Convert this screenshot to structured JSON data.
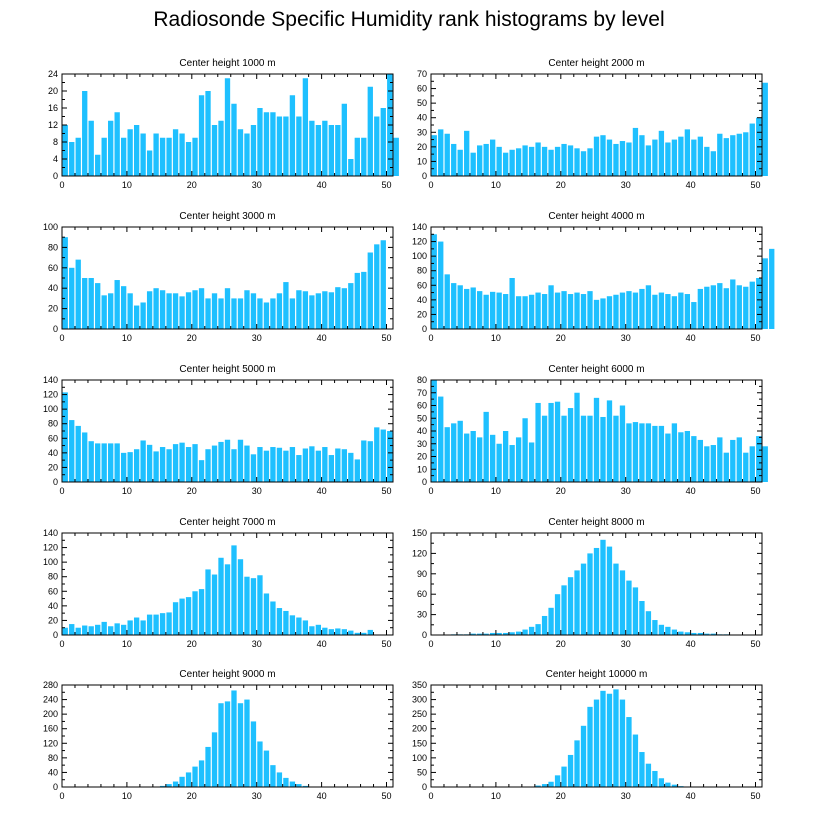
{
  "title": "Radiosonde Specific Humidity rank histograms by level",
  "colors": {
    "bar": "#1ec0ff",
    "axis": "#000000",
    "background": "#ffffff"
  },
  "chart_data": [
    {
      "type": "bar",
      "title": "Center height 1000 m",
      "xlim": [
        0,
        51
      ],
      "ylim": [
        0,
        24
      ],
      "xticks": [
        0,
        10,
        20,
        30,
        40,
        50
      ],
      "yticks": [
        0,
        4,
        8,
        12,
        16,
        20,
        24
      ],
      "values": [
        12,
        8,
        9,
        20,
        13,
        5,
        9,
        13,
        15,
        9,
        11,
        12,
        10,
        6,
        10,
        9,
        9,
        11,
        10,
        8,
        9,
        19,
        20,
        12,
        13,
        23,
        17,
        11,
        10,
        12,
        16,
        15,
        15,
        14,
        14,
        19,
        14,
        23,
        13,
        12,
        13,
        12,
        12,
        17,
        4,
        9,
        9,
        21,
        14,
        16,
        24,
        9
      ]
    },
    {
      "type": "bar",
      "title": "Center height 2000 m",
      "xlim": [
        0,
        51
      ],
      "ylim": [
        0,
        70
      ],
      "xticks": [
        0,
        10,
        20,
        30,
        40,
        50
      ],
      "yticks": [
        0,
        10,
        20,
        30,
        40,
        50,
        60,
        70
      ],
      "values": [
        28,
        32,
        29,
        22,
        18,
        31,
        16,
        21,
        22,
        25,
        20,
        16,
        18,
        19,
        21,
        20,
        23,
        20,
        18,
        20,
        22,
        21,
        19,
        17,
        19,
        27,
        28,
        25,
        22,
        24,
        23,
        33,
        28,
        21,
        25,
        31,
        23,
        25,
        27,
        32,
        25,
        27,
        20,
        17,
        29,
        26,
        28,
        29,
        30,
        36,
        40,
        64
      ]
    },
    {
      "type": "bar",
      "title": "Center height 3000 m",
      "xlim": [
        0,
        51
      ],
      "ylim": [
        0,
        100
      ],
      "xticks": [
        0,
        10,
        20,
        30,
        40,
        50
      ],
      "yticks": [
        0,
        20,
        40,
        60,
        80,
        100
      ],
      "values": [
        90,
        60,
        68,
        50,
        50,
        45,
        33,
        35,
        48,
        42,
        35,
        23,
        26,
        37,
        40,
        38,
        35,
        35,
        32,
        36,
        38,
        40,
        30,
        35,
        30,
        40,
        30,
        30,
        38,
        35,
        30,
        26,
        30,
        35,
        46,
        30,
        38,
        37,
        33,
        35,
        37,
        36,
        41,
        40,
        45,
        55,
        56,
        75,
        83,
        87
      ]
    },
    {
      "type": "bar",
      "title": "Center height 4000 m",
      "xlim": [
        0,
        51
      ],
      "ylim": [
        0,
        140
      ],
      "xticks": [
        0,
        10,
        20,
        30,
        40,
        50
      ],
      "yticks": [
        0,
        20,
        40,
        60,
        80,
        100,
        120,
        140
      ],
      "values": [
        130,
        120,
        75,
        63,
        60,
        55,
        57,
        52,
        47,
        51,
        50,
        48,
        70,
        45,
        45,
        47,
        50,
        48,
        60,
        50,
        52,
        48,
        50,
        48,
        52,
        40,
        42,
        45,
        47,
        50,
        52,
        50,
        55,
        60,
        47,
        50,
        48,
        45,
        50,
        48,
        37,
        55,
        58,
        60,
        63,
        56,
        68,
        60,
        58,
        65,
        70,
        97,
        110
      ]
    },
    {
      "type": "bar",
      "title": "Center height 5000 m",
      "xlim": [
        0,
        51
      ],
      "ylim": [
        0,
        140
      ],
      "xticks": [
        0,
        10,
        20,
        30,
        40,
        50
      ],
      "yticks": [
        0,
        20,
        40,
        60,
        80,
        100,
        120,
        140
      ],
      "values": [
        123,
        85,
        77,
        68,
        56,
        53,
        53,
        53,
        53,
        40,
        41,
        45,
        57,
        51,
        42,
        48,
        45,
        52,
        54,
        48,
        52,
        30,
        45,
        50,
        55,
        58,
        45,
        58,
        50,
        38,
        48,
        43,
        48,
        47,
        43,
        48,
        37,
        46,
        49,
        43,
        48,
        37,
        46,
        45,
        40,
        31,
        57,
        56,
        75,
        72,
        70
      ]
    },
    {
      "type": "bar",
      "title": "Center height 6000 m",
      "xlim": [
        0,
        51
      ],
      "ylim": [
        0,
        80
      ],
      "xticks": [
        0,
        10,
        20,
        30,
        40,
        50
      ],
      "yticks": [
        0,
        10,
        20,
        30,
        40,
        50,
        60,
        70,
        80
      ],
      "values": [
        80,
        67,
        43,
        46,
        48,
        38,
        40,
        35,
        55,
        37,
        30,
        40,
        29,
        35,
        50,
        31,
        62,
        52,
        62,
        63,
        52,
        58,
        70,
        52,
        52,
        66,
        51,
        64,
        52,
        60,
        46,
        47,
        46,
        46,
        44,
        44,
        38,
        46,
        39,
        40,
        36,
        33,
        28,
        29,
        35,
        23,
        33,
        35,
        23,
        28,
        36,
        28
      ]
    },
    {
      "type": "bar",
      "title": "Center height 7000 m",
      "xlim": [
        0,
        51
      ],
      "ylim": [
        0,
        140
      ],
      "xticks": [
        0,
        10,
        20,
        30,
        40,
        50
      ],
      "yticks": [
        0,
        20,
        40,
        60,
        80,
        100,
        120,
        140
      ],
      "values": [
        10,
        15,
        10,
        13,
        12,
        14,
        18,
        12,
        16,
        14,
        20,
        24,
        20,
        28,
        28,
        30,
        31,
        45,
        50,
        52,
        60,
        63,
        90,
        83,
        106,
        97,
        123,
        104,
        80,
        78,
        82,
        57,
        46,
        37,
        33,
        27,
        24,
        20,
        12,
        14,
        10,
        8,
        9,
        8,
        6,
        3,
        3,
        7
      ]
    },
    {
      "type": "bar",
      "title": "Center height 8000 m",
      "xlim": [
        0,
        51
      ],
      "ylim": [
        0,
        150
      ],
      "xticks": [
        0,
        10,
        20,
        30,
        40,
        50
      ],
      "yticks": [
        0,
        30,
        60,
        90,
        120,
        150
      ],
      "values": [
        0,
        0,
        0,
        1,
        1,
        1,
        2,
        2,
        2,
        3,
        3,
        3,
        4,
        5,
        8,
        12,
        16,
        28,
        40,
        60,
        73,
        85,
        95,
        105,
        120,
        128,
        140,
        130,
        105,
        95,
        80,
        70,
        50,
        35,
        22,
        15,
        12,
        8,
        5,
        4,
        3,
        3,
        2,
        2,
        1,
        1,
        0,
        0,
        0,
        0,
        0
      ]
    },
    {
      "type": "bar",
      "title": "Center height 9000 m",
      "xlim": [
        0,
        51
      ],
      "ylim": [
        0,
        280
      ],
      "xticks": [
        0,
        10,
        20,
        30,
        40,
        50
      ],
      "yticks": [
        0,
        40,
        80,
        120,
        160,
        200,
        240,
        280
      ],
      "values": [
        0,
        0,
        0,
        0,
        0,
        0,
        0,
        0,
        0,
        0,
        0,
        0,
        0,
        0,
        1,
        3,
        8,
        15,
        28,
        40,
        56,
        73,
        110,
        150,
        230,
        235,
        265,
        230,
        240,
        180,
        125,
        100,
        60,
        40,
        25,
        15,
        8,
        3,
        1,
        0,
        0,
        0,
        0,
        0,
        0,
        0,
        0,
        0,
        0,
        0,
        0
      ]
    },
    {
      "type": "bar",
      "title": "Center height 10000 m",
      "xlim": [
        0,
        51
      ],
      "ylim": [
        0,
        350
      ],
      "xticks": [
        0,
        10,
        20,
        30,
        40,
        50
      ],
      "yticks": [
        0,
        50,
        100,
        150,
        200,
        250,
        300,
        350
      ],
      "values": [
        0,
        0,
        0,
        0,
        0,
        0,
        0,
        0,
        0,
        0,
        0,
        0,
        0,
        0,
        0,
        0,
        5,
        10,
        18,
        40,
        70,
        110,
        160,
        210,
        275,
        300,
        330,
        320,
        335,
        300,
        240,
        180,
        120,
        80,
        55,
        30,
        15,
        8,
        3,
        1,
        0,
        0,
        0,
        0,
        0,
        0,
        0,
        0,
        0,
        0,
        0
      ]
    }
  ]
}
